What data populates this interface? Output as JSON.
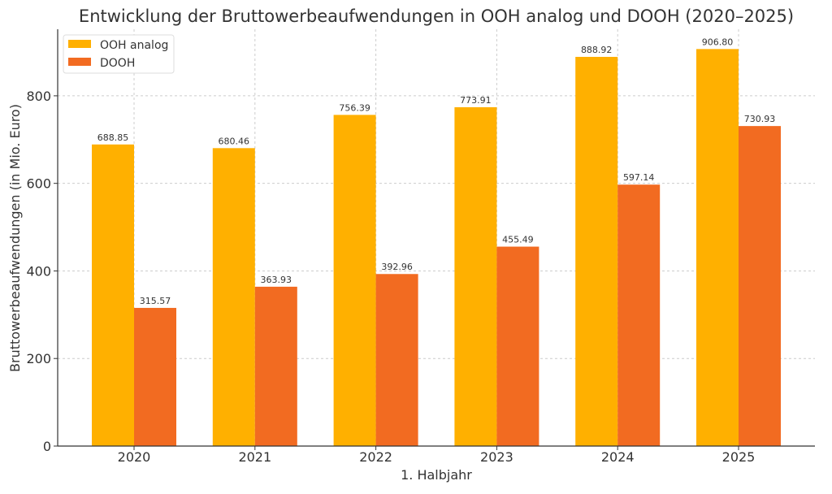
{
  "chart_data": {
    "type": "bar",
    "title": "Entwicklung der Bruttowerbeaufwendungen in OOH analog und DOOH (2020–2025)",
    "xlabel": "1. Halbjahr",
    "ylabel": "Bruttowerbeaufwendungen (in Mio. Euro)",
    "categories": [
      "2020",
      "2021",
      "2022",
      "2023",
      "2024",
      "2025"
    ],
    "series": [
      {
        "name": "OOH analog",
        "color": "#FFB000",
        "values": [
          688.85,
          680.46,
          756.39,
          773.91,
          888.92,
          906.8
        ],
        "labels": [
          "688.85",
          "680.46",
          "756.39",
          "773.91",
          "888.92",
          "906.80"
        ]
      },
      {
        "name": "DOOH",
        "color": "#F26B21",
        "values": [
          315.57,
          363.93,
          392.96,
          455.49,
          597.14,
          730.93
        ],
        "labels": [
          "315.57",
          "363.93",
          "392.96",
          "455.49",
          "597.14",
          "730.93"
        ]
      }
    ],
    "ylim": [
      0,
      952
    ],
    "yticks": [
      0,
      200,
      400,
      600,
      800
    ],
    "ytick_labels": [
      "0",
      "200",
      "400",
      "600",
      "800"
    ],
    "grid": true,
    "legend_position": "top-left"
  }
}
